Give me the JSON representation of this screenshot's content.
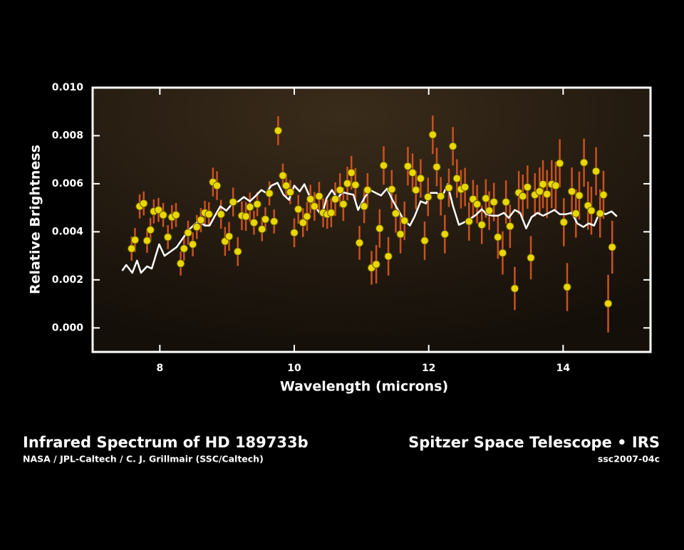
{
  "chart_data": {
    "type": "scatter",
    "x_label": "Wavelength (microns)",
    "y_label": "Relative Brightness",
    "xlim": [
      7.0,
      15.3
    ],
    "ylim": [
      -0.001,
      0.01
    ],
    "xticks": [
      8,
      10,
      12,
      14
    ],
    "yticks": [
      {
        "value": 0,
        "label": "0.000"
      },
      0.002,
      0.004,
      0.006,
      0.008,
      {
        "value": 0.01,
        "label": "0.010"
      }
    ],
    "observations": {
      "color": "#e8d800",
      "error_color": "#c9521f",
      "x": [
        7.58,
        7.63,
        7.7,
        7.76,
        7.81,
        7.86,
        7.91,
        7.98,
        8.05,
        8.12,
        8.18,
        8.24,
        8.31,
        8.36,
        8.42,
        8.49,
        8.55,
        8.61,
        8.67,
        8.73,
        8.79,
        8.85,
        8.91,
        8.97,
        9.03,
        9.09,
        9.16,
        9.22,
        9.28,
        9.34,
        9.4,
        9.45,
        9.52,
        9.57,
        9.63,
        9.7,
        9.76,
        9.83,
        9.88,
        9.94,
        10.0,
        10.06,
        10.13,
        10.19,
        10.24,
        10.3,
        10.37,
        10.43,
        10.49,
        10.55,
        10.61,
        10.68,
        10.73,
        10.79,
        10.85,
        10.91,
        10.97,
        11.04,
        11.09,
        11.15,
        11.22,
        11.27,
        11.33,
        11.4,
        11.45,
        11.51,
        11.58,
        11.64,
        11.69,
        11.76,
        11.81,
        11.88,
        11.94,
        11.99,
        12.06,
        12.12,
        12.18,
        12.24,
        12.3,
        12.36,
        12.42,
        12.48,
        12.54,
        12.6,
        12.66,
        12.72,
        12.79,
        12.85,
        12.9,
        12.97,
        13.03,
        13.1,
        13.15,
        13.21,
        13.28,
        13.34,
        13.4,
        13.47,
        13.52,
        13.58,
        13.65,
        13.7,
        13.76,
        13.83,
        13.89,
        13.95,
        14.01,
        14.06,
        14.13,
        14.19,
        14.24,
        14.31,
        14.37,
        14.42,
        14.49,
        14.55,
        14.6,
        14.67,
        14.73
      ],
      "values": [
        0.0033,
        0.00366,
        0.00506,
        0.00518,
        0.00363,
        0.00408,
        0.00485,
        0.00491,
        0.0047,
        0.00378,
        0.00461,
        0.0047,
        0.00268,
        0.0033,
        0.00396,
        0.00348,
        0.0042,
        0.00449,
        0.00479,
        0.00473,
        0.00607,
        0.00592,
        0.00473,
        0.0036,
        0.00381,
        0.00524,
        0.00318,
        0.00467,
        0.00464,
        0.00503,
        0.00438,
        0.00515,
        0.00411,
        0.00452,
        0.0056,
        0.00443,
        0.00821,
        0.00634,
        0.00592,
        0.00565,
        0.00396,
        0.00494,
        0.00438,
        0.00464,
        0.00536,
        0.00506,
        0.00548,
        0.00479,
        0.00473,
        0.00479,
        0.00536,
        0.00574,
        0.00515,
        0.00601,
        0.00646,
        0.00595,
        0.00354,
        0.00506,
        0.00574,
        0.0025,
        0.00265,
        0.00414,
        0.00676,
        0.00298,
        0.00577,
        0.00476,
        0.0039,
        0.00446,
        0.00673,
        0.00646,
        0.00574,
        0.00622,
        0.00363,
        0.00545,
        0.00804,
        0.0067,
        0.00548,
        0.0039,
        0.00583,
        0.00756,
        0.00622,
        0.00577,
        0.00586,
        0.00443,
        0.00536,
        0.00515,
        0.00429,
        0.00539,
        0.00488,
        0.00524,
        0.00378,
        0.00312,
        0.00524,
        0.00423,
        0.00164,
        0.00563,
        0.00548,
        0.00586,
        0.00292,
        0.00554,
        0.00568,
        0.00598,
        0.00557,
        0.00598,
        0.00592,
        0.00685,
        0.0044,
        0.0017,
        0.00568,
        0.00476,
        0.00551,
        0.00688,
        0.00509,
        0.00488,
        0.00652,
        0.00476,
        0.00554,
        0.00101,
        0.00336
      ],
      "errors": [
        0.0005,
        0.0005,
        0.0005,
        0.0005,
        0.0005,
        0.0005,
        0.0005,
        0.0005,
        0.0005,
        0.0005,
        0.0005,
        0.0005,
        0.0005,
        0.0005,
        0.0005,
        0.0005,
        0.0005,
        0.0005,
        0.0005,
        0.0005,
        0.0006,
        0.0006,
        0.0006,
        0.0006,
        0.0006,
        0.0006,
        0.0006,
        0.0006,
        0.0006,
        0.0006,
        0.0005,
        0.0005,
        0.0005,
        0.0005,
        0.0005,
        0.0005,
        0.0006,
        0.0005,
        0.0005,
        0.0005,
        0.0006,
        0.0006,
        0.0006,
        0.0006,
        0.0006,
        0.0006,
        0.0006,
        0.0006,
        0.0006,
        0.0006,
        0.0007,
        0.0007,
        0.0007,
        0.0007,
        0.0007,
        0.0007,
        0.0007,
        0.0007,
        0.0007,
        0.0007,
        0.0008,
        0.0008,
        0.0008,
        0.0008,
        0.0008,
        0.0008,
        0.0008,
        0.0008,
        0.0008,
        0.0008,
        0.0008,
        0.0008,
        0.0008,
        0.0008,
        0.0008,
        0.0008,
        0.0008,
        0.0008,
        0.0008,
        0.0008,
        0.0008,
        0.0008,
        0.0008,
        0.0008,
        0.0008,
        0.0008,
        0.0008,
        0.0008,
        0.0008,
        0.0008,
        0.0009,
        0.0009,
        0.0009,
        0.0009,
        0.0009,
        0.0009,
        0.0009,
        0.0009,
        0.0009,
        0.0009,
        0.001,
        0.001,
        0.001,
        0.001,
        0.001,
        0.001,
        0.001,
        0.001,
        0.001,
        0.001,
        0.001,
        0.001,
        0.001,
        0.001,
        0.001,
        0.001,
        0.001,
        0.0012,
        0.0011
      ]
    },
    "model": {
      "color": "#ffffff",
      "x": [
        7.44,
        7.5,
        7.59,
        7.66,
        7.72,
        7.81,
        7.88,
        7.99,
        8.07,
        8.16,
        8.25,
        8.34,
        8.42,
        8.52,
        8.59,
        8.67,
        8.74,
        8.82,
        8.9,
        8.99,
        9.07,
        9.17,
        9.25,
        9.34,
        9.42,
        9.51,
        9.58,
        9.66,
        9.75,
        9.84,
        9.92,
        10.0,
        10.08,
        10.15,
        10.24,
        10.32,
        10.41,
        10.48,
        10.56,
        10.64,
        10.72,
        10.79,
        10.88,
        10.95,
        11.05,
        11.13,
        11.21,
        11.29,
        11.38,
        11.46,
        11.55,
        11.63,
        11.72,
        11.79,
        11.88,
        11.96,
        12.03,
        12.12,
        12.19,
        12.28,
        12.36,
        12.45,
        12.53,
        12.62,
        12.7,
        12.79,
        12.86,
        12.95,
        13.03,
        13.12,
        13.19,
        13.28,
        13.36,
        13.45,
        13.53,
        13.62,
        13.7,
        13.79,
        13.87,
        13.95,
        14.04,
        14.13,
        14.21,
        14.3,
        14.38,
        14.46,
        14.55,
        14.63,
        14.72,
        14.8
      ],
      "values": [
        0.00238,
        0.00262,
        0.00229,
        0.0028,
        0.00229,
        0.00256,
        0.00247,
        0.00348,
        0.003,
        0.00318,
        0.00336,
        0.00372,
        0.00405,
        0.00432,
        0.00443,
        0.00426,
        0.00426,
        0.00467,
        0.00506,
        0.00488,
        0.00515,
        0.00527,
        0.00545,
        0.00527,
        0.00548,
        0.00574,
        0.00562,
        0.00592,
        0.00604,
        0.00554,
        0.00533,
        0.00592,
        0.00568,
        0.00598,
        0.00539,
        0.005,
        0.00467,
        0.00539,
        0.00574,
        0.00539,
        0.00565,
        0.0056,
        0.00554,
        0.00491,
        0.00545,
        0.00574,
        0.00562,
        0.00551,
        0.0058,
        0.00533,
        0.00488,
        0.00449,
        0.00426,
        0.00464,
        0.00527,
        0.00518,
        0.00562,
        0.00562,
        0.00539,
        0.00598,
        0.00509,
        0.00429,
        0.0044,
        0.00455,
        0.0047,
        0.00494,
        0.00473,
        0.00467,
        0.00467,
        0.00479,
        0.00458,
        0.00491,
        0.00479,
        0.00414,
        0.00461,
        0.00479,
        0.00467,
        0.00479,
        0.00491,
        0.00473,
        0.00473,
        0.00479,
        0.00435,
        0.0042,
        0.00435,
        0.00426,
        0.00485,
        0.00473,
        0.00485,
        0.00464
      ]
    }
  },
  "caption": {
    "title": "Infrared Spectrum of HD 189733b",
    "credit": "NASA / JPL-Caltech / C. J. Grillmair (SSC/Caltech)",
    "mission": "Spitzer Space Telescope • IRS",
    "id": "ssc2007-04c"
  }
}
